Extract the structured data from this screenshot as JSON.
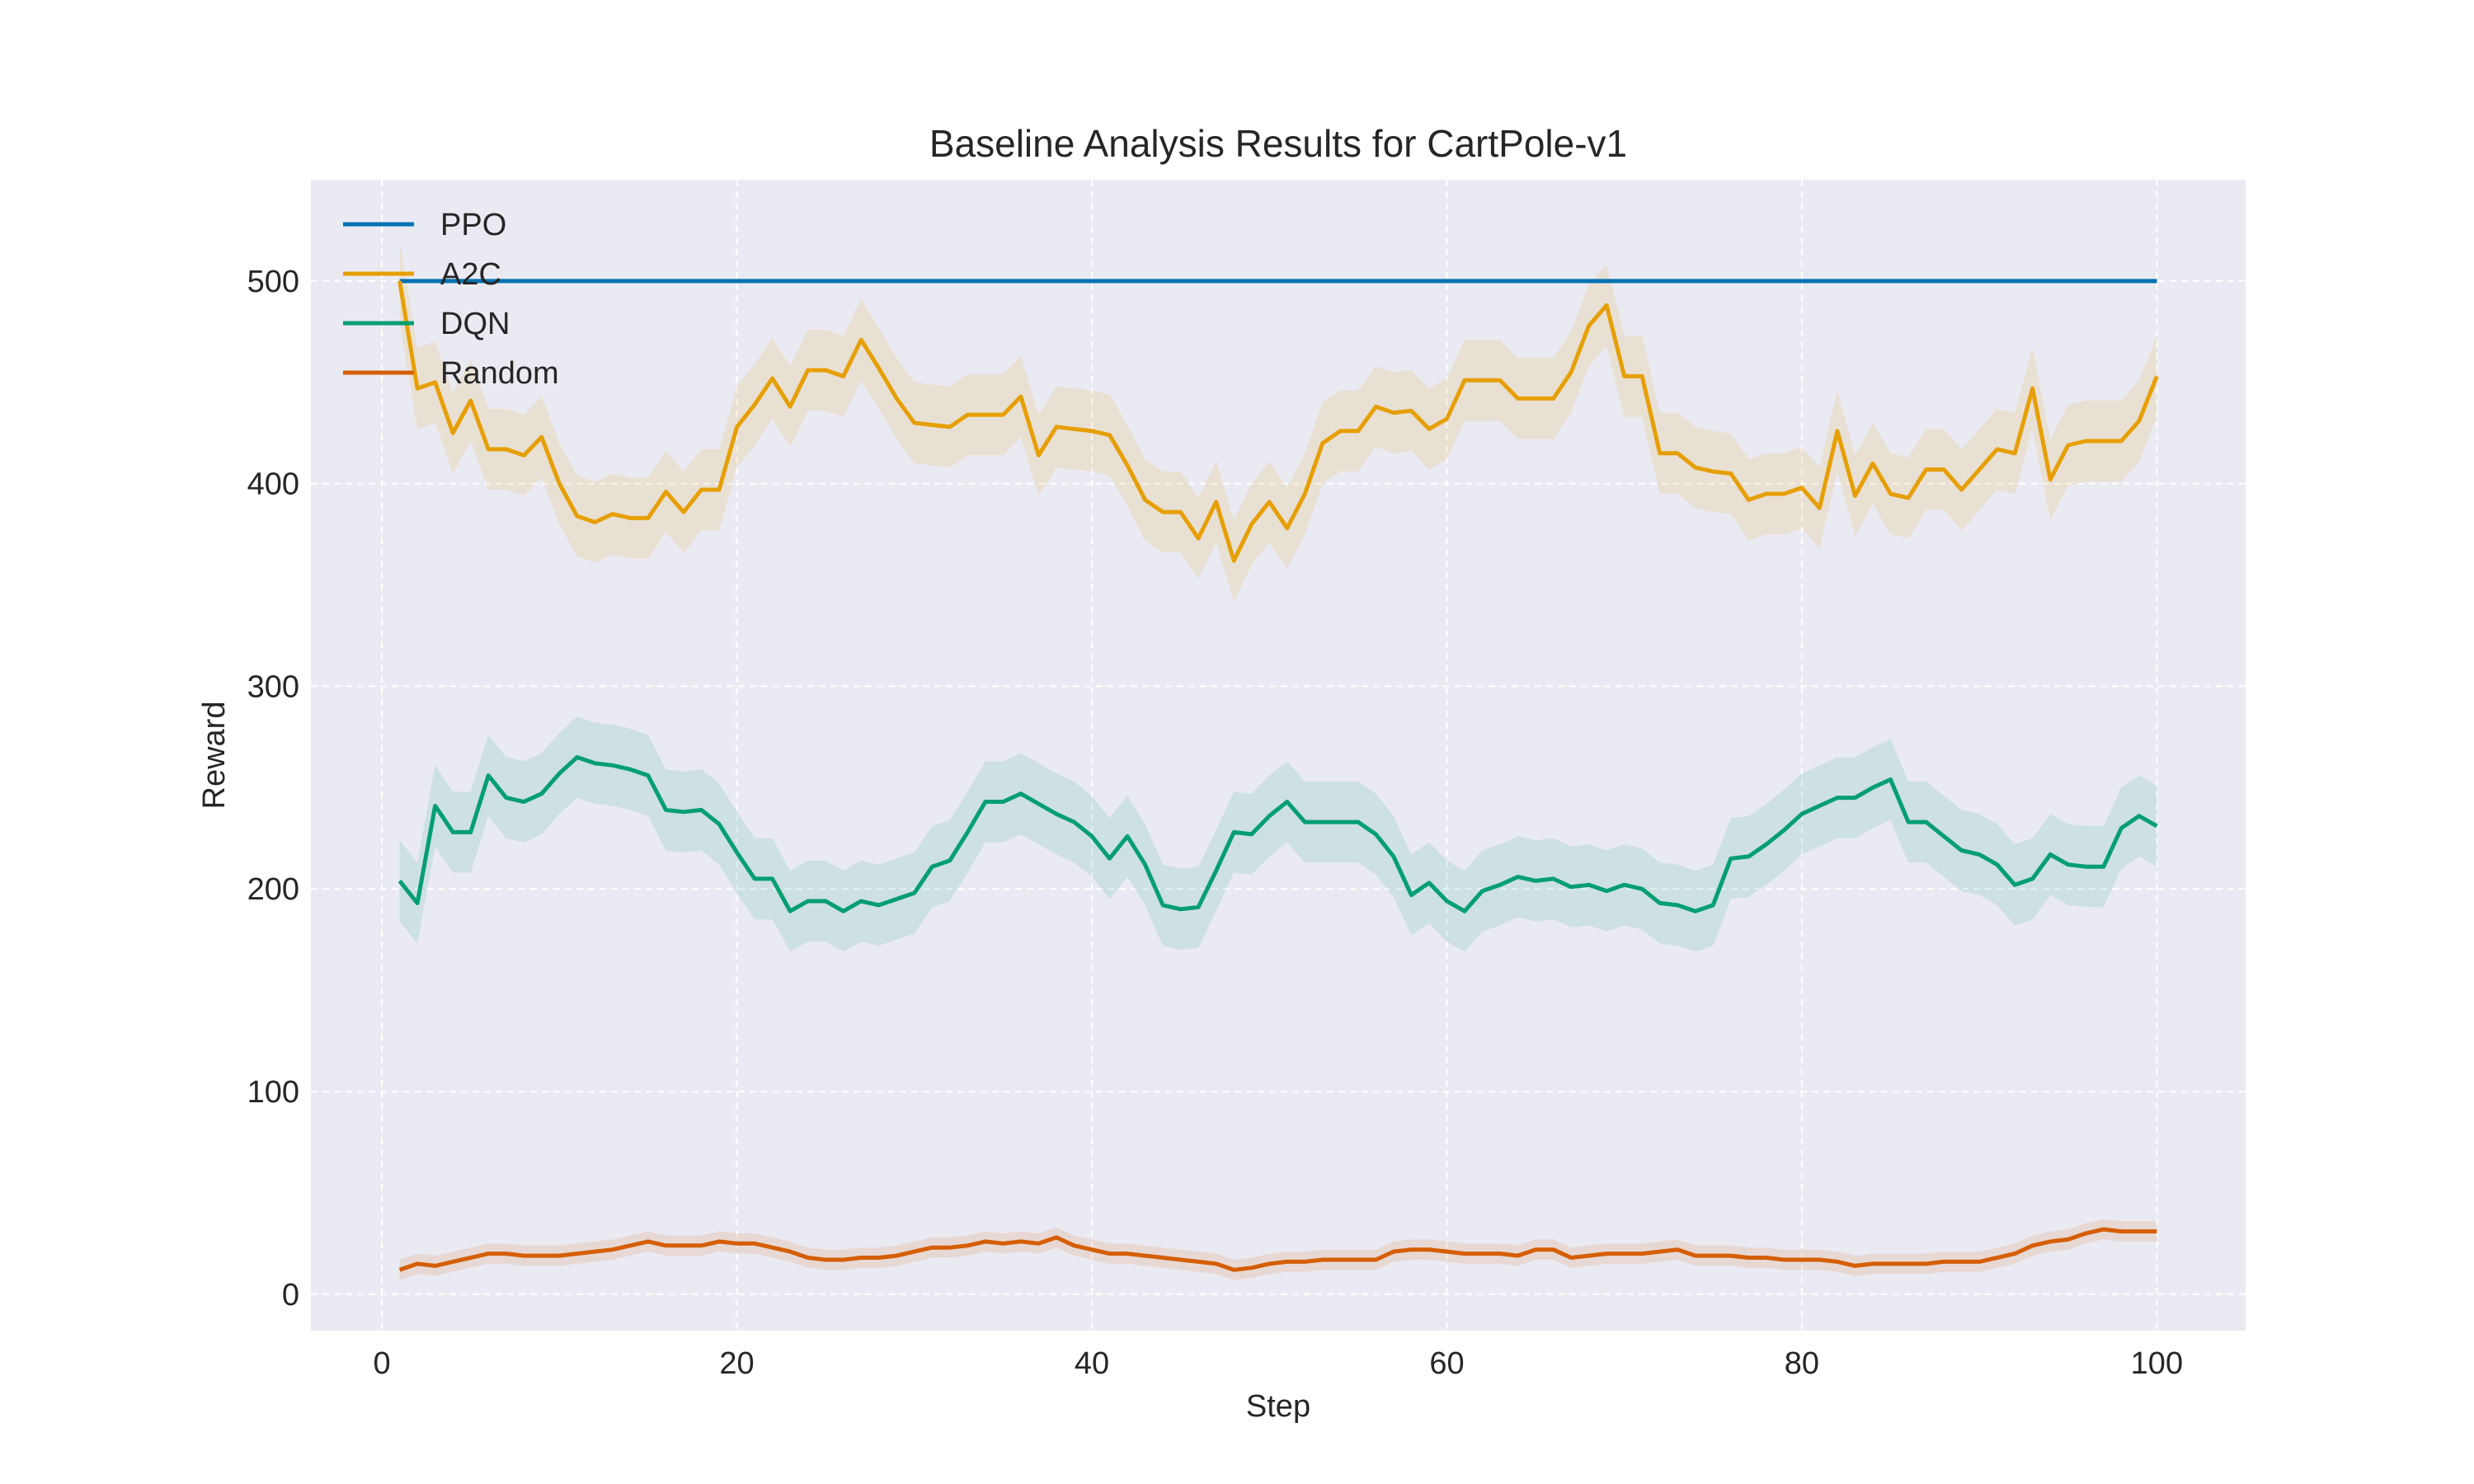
{
  "chart_data": {
    "type": "line",
    "title": "Baseline Analysis Results for CartPole-v1",
    "xlabel": "Step",
    "ylabel": "Reward",
    "xlim": [
      -4,
      105
    ],
    "ylim": [
      -18,
      550
    ],
    "xticks": [
      0,
      20,
      40,
      60,
      80,
      100
    ],
    "yticks": [
      0,
      100,
      200,
      300,
      400,
      500
    ],
    "grid": true,
    "legend_position": "top-left",
    "band_halfwidth": 20,
    "random_band_halfwidth": 5,
    "x_start": 1,
    "x_step": 1,
    "series": [
      {
        "name": "PPO",
        "color": "#0072b2",
        "values": [
          500,
          500,
          500,
          500,
          500,
          500,
          500,
          500,
          500,
          500,
          500,
          500,
          500,
          500,
          500,
          500,
          500,
          500,
          500,
          500,
          500,
          500,
          500,
          500,
          500,
          500,
          500,
          500,
          500,
          500,
          500,
          500,
          500,
          500,
          500,
          500,
          500,
          500,
          500,
          500,
          500,
          500,
          500,
          500,
          500,
          500,
          500,
          500,
          500,
          500,
          500,
          500,
          500,
          500,
          500,
          500,
          500,
          500,
          500,
          500,
          500,
          500,
          500,
          500,
          500,
          500,
          500,
          500,
          500,
          500,
          500,
          500,
          500,
          500,
          500,
          500,
          500,
          500,
          500,
          500,
          500,
          500,
          500,
          500,
          500,
          500,
          500,
          500,
          500,
          500,
          500,
          500,
          500,
          500,
          500,
          500,
          500,
          500,
          500,
          500
        ]
      },
      {
        "name": "A2C",
        "color": "#e69f00",
        "values": [
          500,
          447,
          450,
          425,
          441,
          417,
          417,
          414,
          423,
          400,
          384,
          381,
          385,
          383,
          383,
          396,
          386,
          397,
          397,
          428,
          439,
          452,
          438,
          456,
          456,
          453,
          471,
          457,
          442,
          430,
          429,
          428,
          434,
          434,
          434,
          443,
          414,
          428,
          427,
          426,
          424,
          409,
          392,
          386,
          386,
          373,
          391,
          362,
          380,
          391,
          378,
          395,
          420,
          426,
          426,
          438,
          435,
          436,
          427,
          432,
          451,
          451,
          451,
          442,
          442,
          442,
          455,
          478,
          488,
          453,
          453,
          415,
          415,
          408,
          406,
          405,
          392,
          395,
          395,
          398,
          388,
          426,
          394,
          410,
          395,
          393,
          407,
          407,
          397,
          407,
          417,
          415,
          447,
          402,
          419,
          421,
          421,
          421,
          431,
          453
        ]
      },
      {
        "name": "DQN",
        "color": "#009e73",
        "values": [
          204,
          193,
          241,
          228,
          228,
          256,
          245,
          243,
          247,
          257,
          265,
          262,
          261,
          259,
          256,
          239,
          238,
          239,
          232,
          218,
          205,
          205,
          189,
          194,
          194,
          189,
          194,
          192,
          195,
          198,
          211,
          214,
          228,
          243,
          243,
          247,
          242,
          237,
          233,
          226,
          215,
          226,
          212,
          192,
          190,
          191,
          209,
          228,
          227,
          236,
          243,
          233,
          233,
          233,
          233,
          227,
          216,
          197,
          203,
          194,
          189,
          199,
          202,
          206,
          204,
          205,
          201,
          202,
          199,
          202,
          200,
          193,
          192,
          189,
          192,
          215,
          216,
          222,
          229,
          237,
          241,
          245,
          245,
          250,
          254,
          233,
          233,
          226,
          219,
          217,
          212,
          202,
          205,
          217,
          212,
          211,
          211,
          230,
          236,
          231
        ]
      },
      {
        "name": "Random",
        "color": "#d55e00",
        "values": [
          12,
          15,
          14,
          16,
          18,
          20,
          20,
          19,
          19,
          19,
          20,
          21,
          22,
          24,
          26,
          24,
          24,
          24,
          26,
          25,
          25,
          23,
          21,
          18,
          17,
          17,
          18,
          18,
          19,
          21,
          23,
          23,
          24,
          26,
          25,
          26,
          25,
          28,
          24,
          22,
          20,
          20,
          19,
          18,
          17,
          16,
          15,
          12,
          13,
          15,
          16,
          16,
          17,
          17,
          17,
          17,
          21,
          22,
          22,
          21,
          20,
          20,
          20,
          19,
          22,
          22,
          18,
          19,
          20,
          20,
          20,
          21,
          22,
          19,
          19,
          19,
          18,
          18,
          17,
          17,
          17,
          16,
          14,
          15,
          15,
          15,
          15,
          16,
          16,
          16,
          18,
          20,
          24,
          26,
          27,
          30,
          32,
          31,
          31,
          31
        ]
      }
    ]
  }
}
